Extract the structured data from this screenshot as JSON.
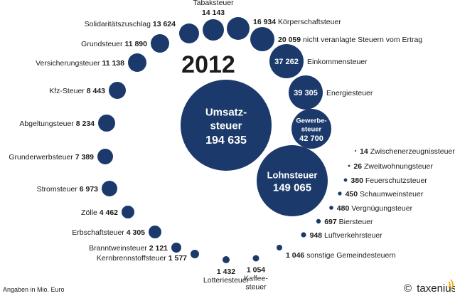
{
  "year": "2012",
  "footnote": "Angaben in Mio. Euro",
  "brand": {
    "copyright": "©",
    "name": "taxenius"
  },
  "colors": {
    "circle": "#1b3a6b",
    "text": "#1c1c1c",
    "accent": "#f0a800"
  },
  "chart_data": {
    "type": "bubble",
    "unit": "Mio. Euro",
    "items": [
      {
        "name": "Umsatzsteuer",
        "value": 194635,
        "label_lines": [
          "Umsatz-",
          "steuer"
        ],
        "value_text": "194 635"
      },
      {
        "name": "Lohnsteuer",
        "value": 149065,
        "value_text": "149 065"
      },
      {
        "name": "Gewerbesteuer",
        "value": 42700,
        "label_lines": [
          "Gewerbe-",
          "steuer"
        ],
        "value_text": "42 700"
      },
      {
        "name": "Energiesteuer",
        "value": 39305,
        "value_text": "39 305"
      },
      {
        "name": "Einkommensteuer",
        "value": 37262,
        "value_text": "37 262"
      },
      {
        "name": "nicht veranlagte Steuern vom Ertrag",
        "value": 20059,
        "value_text": "20 059"
      },
      {
        "name": "Körperschaftsteuer",
        "value": 16934,
        "value_text": "16 934"
      },
      {
        "name": "Tabaksteuer",
        "value": 14143,
        "value_text": "14 143"
      },
      {
        "name": "Solidaritätszuschlag",
        "value": 13624,
        "value_text": "13 624"
      },
      {
        "name": "Grundsteuer",
        "value": 11890,
        "value_text": "11 890"
      },
      {
        "name": "Versicherungsteuer",
        "value": 11138,
        "value_text": "11 138"
      },
      {
        "name": "Kfz-Steuer",
        "value": 8443,
        "value_text": "8 443"
      },
      {
        "name": "Abgeltungsteuer",
        "value": 8234,
        "value_text": "8 234"
      },
      {
        "name": "Grunderwerbsteuer",
        "value": 7389,
        "value_text": "7 389"
      },
      {
        "name": "Stromsteuer",
        "value": 6973,
        "value_text": "6 973"
      },
      {
        "name": "Zölle",
        "value": 4462,
        "value_text": "4 462"
      },
      {
        "name": "Erbschaftsteuer",
        "value": 4305,
        "value_text": "4 305"
      },
      {
        "name": "Branntweinsteuer",
        "value": 2121,
        "value_text": "2 121"
      },
      {
        "name": "Kernbrennstoffsteuer",
        "value": 1577,
        "value_text": "1 577"
      },
      {
        "name": "Lotteriesteuer",
        "value": 1432,
        "value_text": "1 432"
      },
      {
        "name": "Kaffeesteuer",
        "value": 1054,
        "label_lines": [
          "Kaffee-",
          "steuer"
        ],
        "value_text": "1 054"
      },
      {
        "name": "sonstige Gemeindesteuern",
        "value": 1046,
        "value_text": "1 046"
      },
      {
        "name": "Luftverkehrsteuer",
        "value": 948,
        "value_text": "948"
      },
      {
        "name": "Biersteuer",
        "value": 697,
        "value_text": "697"
      },
      {
        "name": "Vergnügungsteuer",
        "value": 480,
        "value_text": "480"
      },
      {
        "name": "Schaumweinsteuer",
        "value": 450,
        "value_text": "450"
      },
      {
        "name": "Feuerschutzsteuer",
        "value": 380,
        "value_text": "380"
      },
      {
        "name": "Zweitwohnungsteuer",
        "value": 26,
        "value_text": "26"
      },
      {
        "name": "Zwischenerzeugnissteuer",
        "value": 14,
        "value_text": "14"
      }
    ]
  }
}
